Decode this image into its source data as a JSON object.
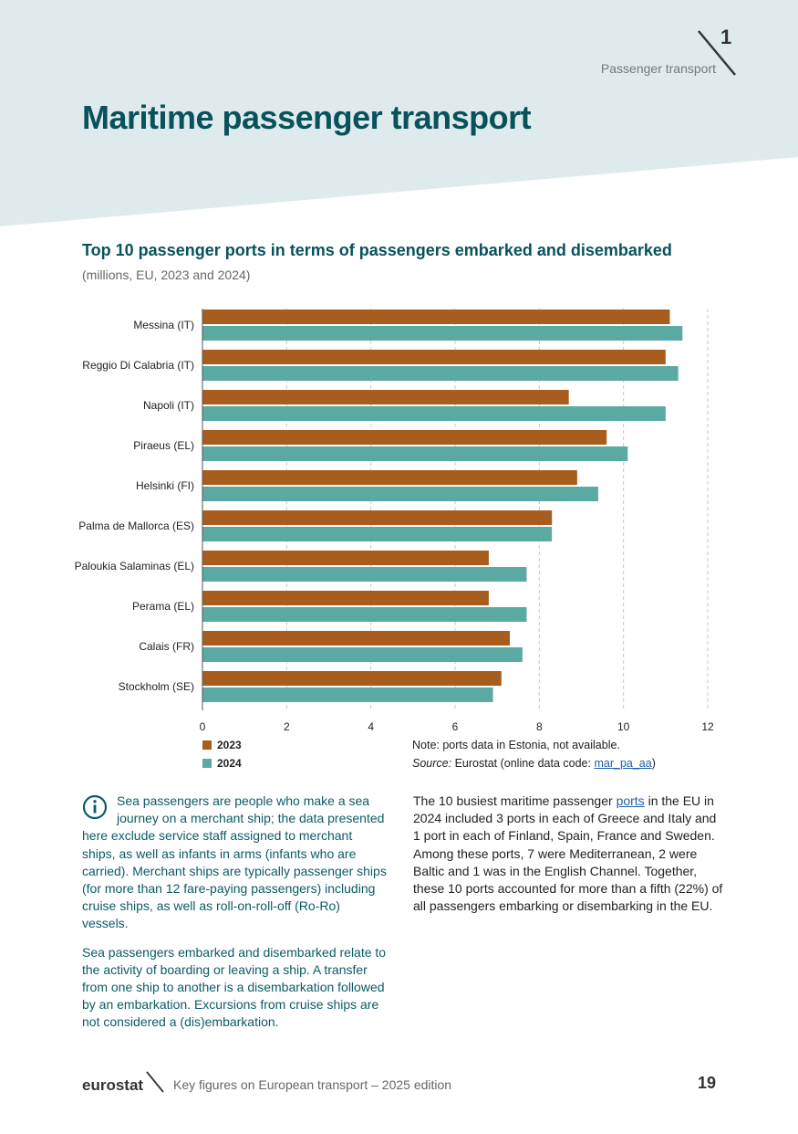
{
  "header": {
    "chapter_number": "1",
    "chapter_label": "Passenger transport",
    "page_title": "Maritime passenger transport"
  },
  "colors": {
    "band": "#dfeaed",
    "teal": "#5aa9a3",
    "orange": "#a85d1e",
    "title": "#08525c"
  },
  "chart_data": {
    "type": "bar",
    "orientation": "horizontal",
    "title": "Top 10 passenger ports in terms of passengers embarked and disembarked",
    "subtitle": "(millions, EU, 2023 and 2024)",
    "categories": [
      "Messina (IT)",
      "Reggio Di Calabria (IT)",
      "Napoli (IT)",
      "Piraeus (EL)",
      "Helsinki (FI)",
      "Palma de Mallorca (ES)",
      "Paloukia Salaminas (EL)",
      "Perama (EL)",
      "Calais (FR)",
      "Stockholm (SE)"
    ],
    "series": [
      {
        "name": "2023",
        "color": "#a85d1e",
        "values": [
          11.1,
          11.0,
          8.7,
          9.6,
          8.9,
          8.3,
          6.8,
          6.8,
          7.3,
          7.1
        ]
      },
      {
        "name": "2024",
        "color": "#5aa9a3",
        "values": [
          11.4,
          11.3,
          11.0,
          10.1,
          9.4,
          8.3,
          7.7,
          7.7,
          7.6,
          6.9
        ]
      }
    ],
    "xlim": [
      0,
      12
    ],
    "xticks": [
      "0",
      "2",
      "4",
      "6",
      "8",
      "10",
      "12"
    ],
    "grid": true,
    "legend": "bottom-left"
  },
  "notes": {
    "note": "Note: ports data in Estonia, not available.",
    "source_label": "Source:",
    "source_text": "Eurostat (online data code:",
    "source_code": "mar_pa_aa",
    "source_close": ")"
  },
  "info": {
    "icon": "info-icon",
    "para1": "Sea passengers are people who make a sea journey on a merchant ship; the data presented here exclude service staff assigned to merchant ships, as well as infants in arms (infants who are carried). Merchant ships are typically passenger ships (for more than 12 fare-paying passengers) including cruise ships, as well as roll-on-roll-off (Ro-Ro) vessels.",
    "para2": "Sea passengers embarked and disembarked relate to the activity of boarding or leaving a ship. A transfer from one ship to another is a disembarkation followed by an embarkation. Excursions from cruise ships are not considered a (dis)embarkation."
  },
  "body": {
    "before_link": "The 10 busiest maritime passenger ",
    "link": "ports",
    "after_link": " in the EU in 2024 included 3 ports in each of Greece and Italy and 1 port in each of Finland, Spain, France and Sweden. Among these ports, 7 were Mediterranean, 2 were Baltic and 1 was in the English Channel. Together, these 10 ports accounted for more than a fifth (22%) of all passengers embarking or disembarking in the EU."
  },
  "footer": {
    "logo": "eurostat",
    "publication": "Key figures on European transport – 2025 edition",
    "page_number": "19"
  }
}
